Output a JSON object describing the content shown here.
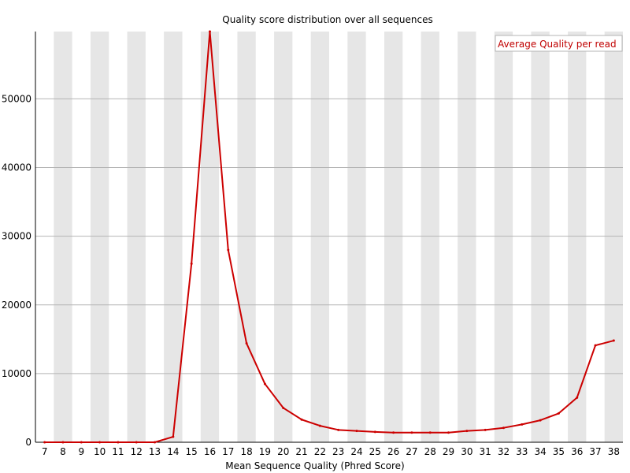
{
  "chart_data": {
    "type": "line",
    "title": "Quality score distribution over all sequences",
    "xlabel": "Mean Sequence Quality (Phred Score)",
    "ylabel": "",
    "x": [
      7,
      8,
      9,
      10,
      11,
      12,
      13,
      14,
      15,
      16,
      17,
      18,
      19,
      20,
      21,
      22,
      23,
      24,
      25,
      26,
      27,
      28,
      29,
      30,
      31,
      32,
      33,
      34,
      35,
      36,
      37,
      38
    ],
    "ylim": [
      0,
      59800
    ],
    "yticks": [
      0,
      10000,
      20000,
      30000,
      40000,
      50000
    ],
    "grid": "horizontal",
    "alternating_bands": true,
    "legend_position": "top-right",
    "series": [
      {
        "name": "Average Quality per read",
        "color": "#cc0000",
        "values": [
          0,
          0,
          0,
          0,
          0,
          0,
          0,
          800,
          26000,
          59800,
          28000,
          14400,
          8500,
          5000,
          3300,
          2400,
          1800,
          1650,
          1500,
          1400,
          1400,
          1400,
          1400,
          1650,
          1800,
          2100,
          2600,
          3200,
          4200,
          6500,
          14100,
          14800
        ]
      }
    ]
  }
}
